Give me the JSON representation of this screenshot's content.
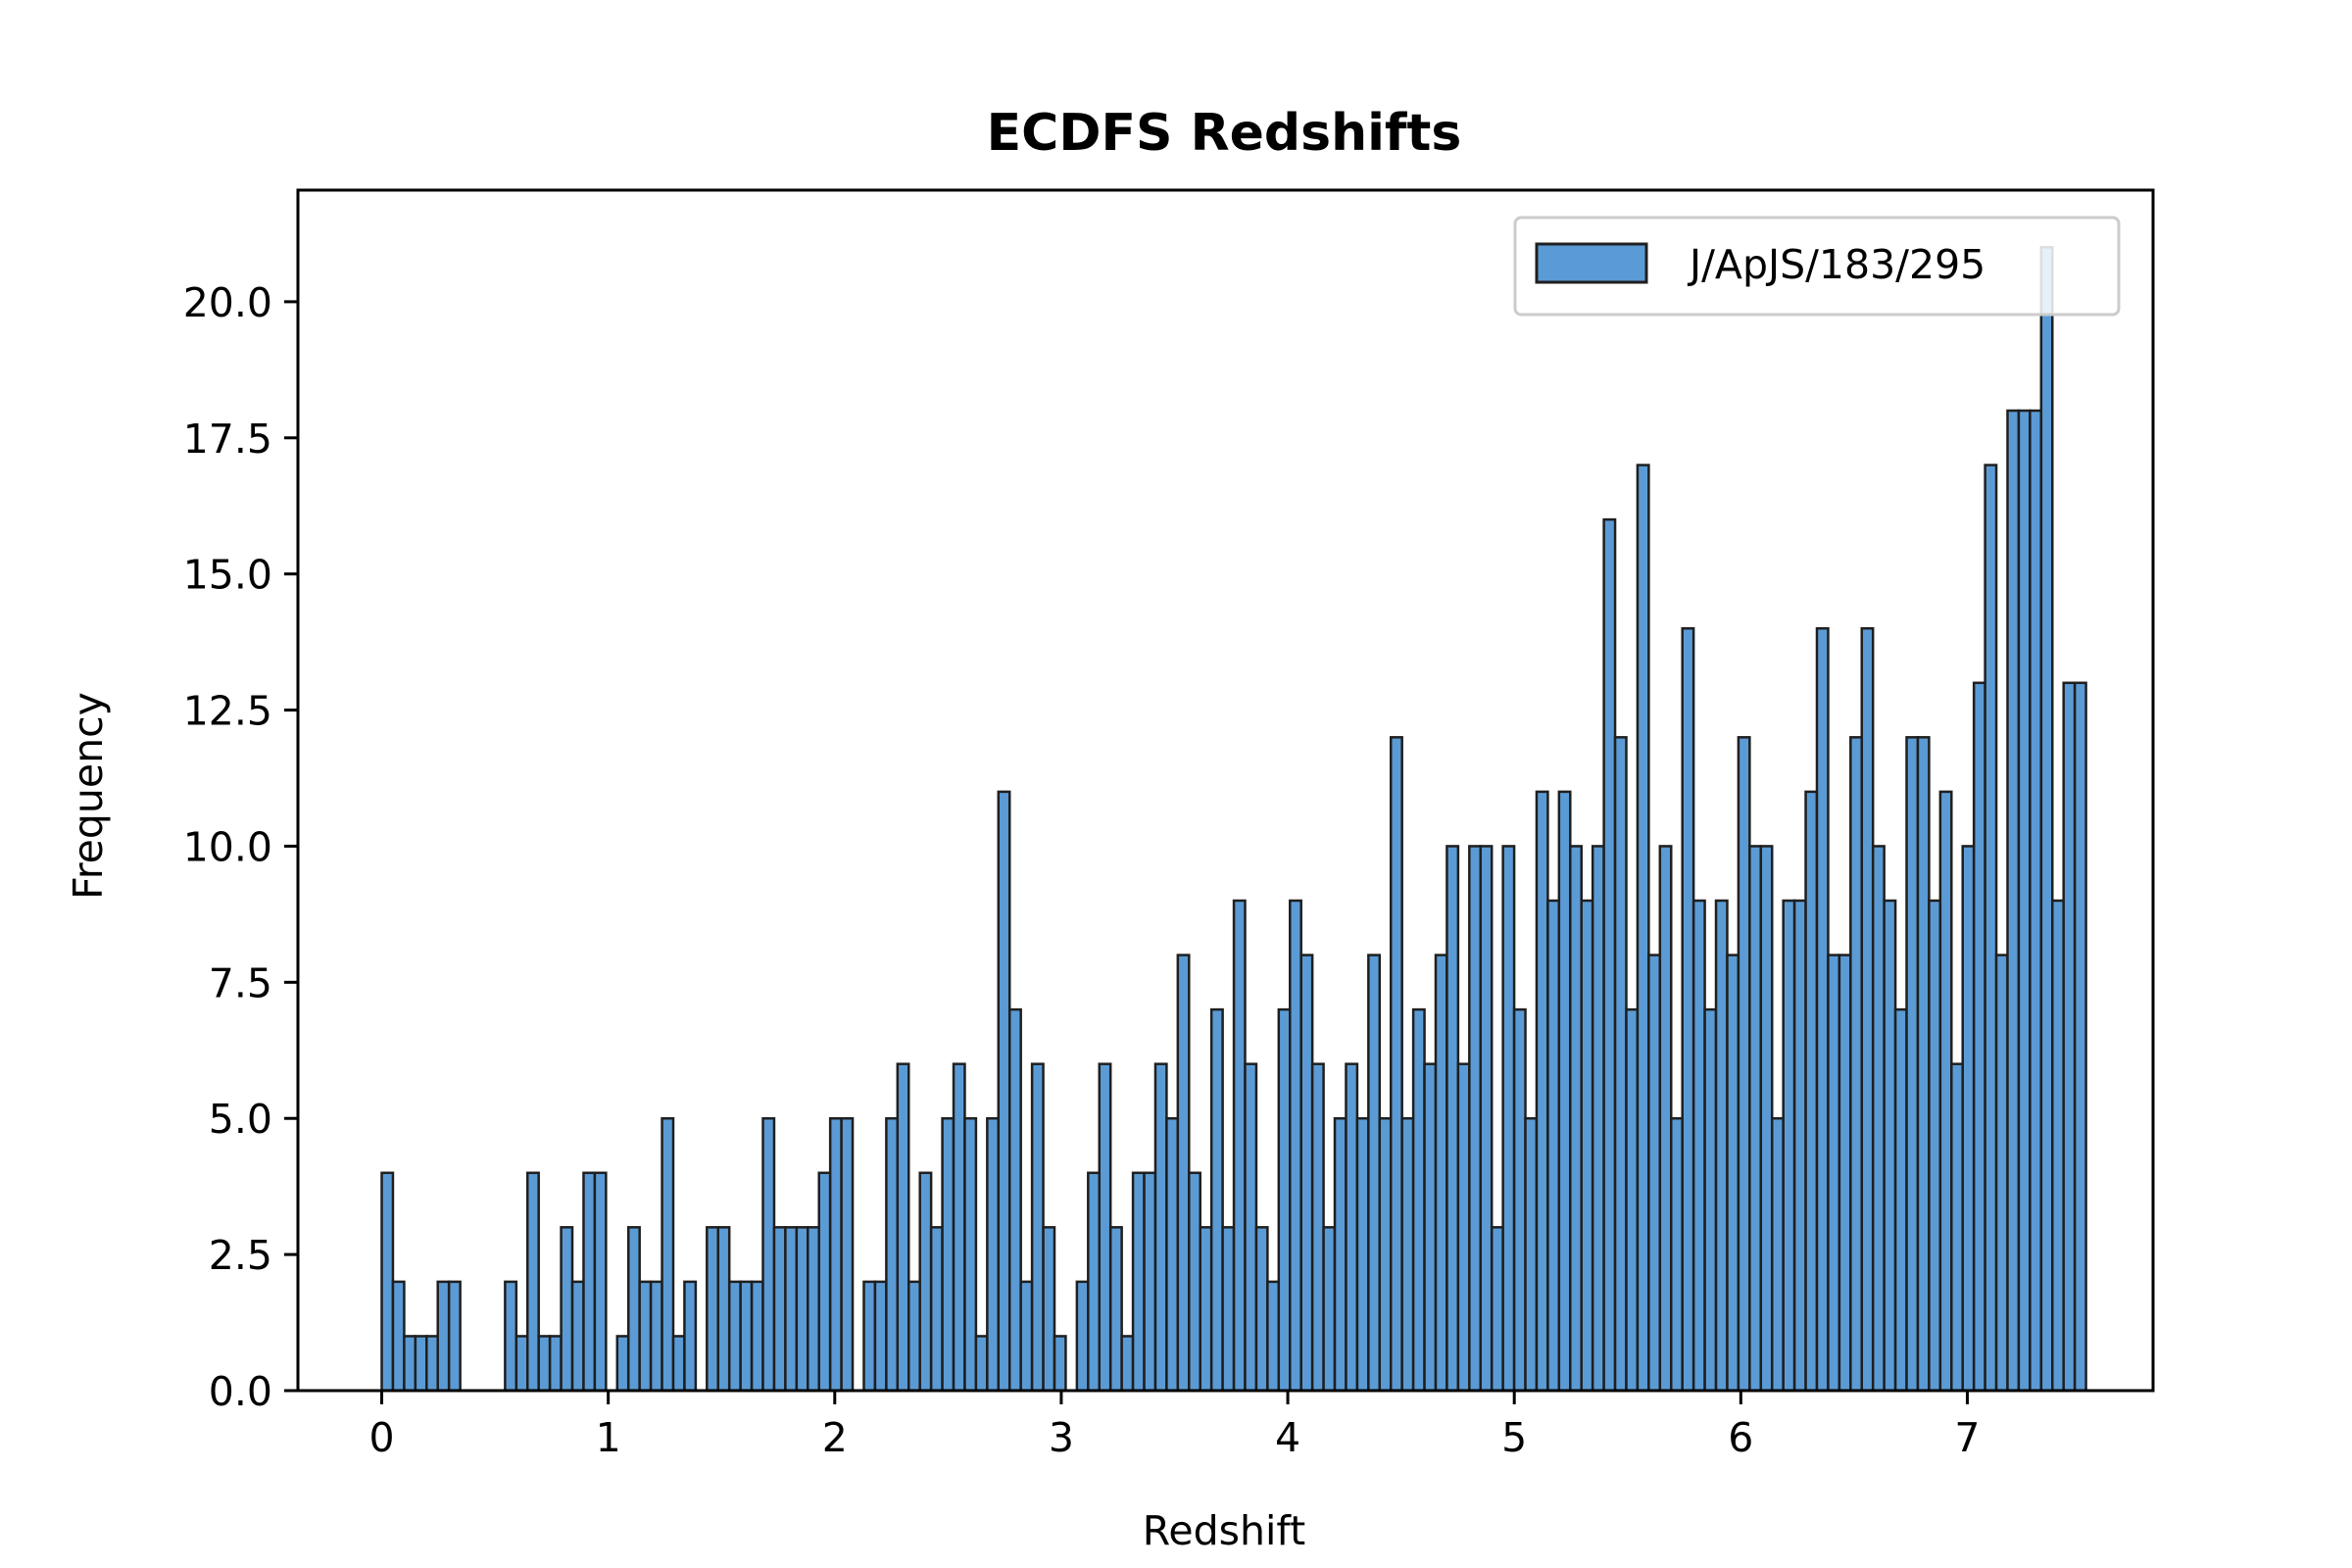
{
  "chart_data": {
    "type": "bar",
    "title": "ECDFS Redshifts",
    "xlabel": "Redshift",
    "ylabel": "Frequency",
    "xlim": [
      -0.37,
      7.82
    ],
    "ylim": [
      0,
      22.05
    ],
    "x_ticks": [
      0,
      1,
      2,
      3,
      4,
      5,
      6,
      7
    ],
    "x_tick_labels": [
      "0",
      "1",
      "2",
      "3",
      "4",
      "5",
      "6",
      "7"
    ],
    "y_ticks": [
      0,
      2.5,
      5,
      7.5,
      10,
      12.5,
      15,
      17.5,
      20
    ],
    "y_tick_labels": [
      "0.0",
      "2.5",
      "5.0",
      "7.5",
      "10.0",
      "12.5",
      "15.0",
      "17.5",
      "20.0"
    ],
    "grid": false,
    "legend_position": "top-right",
    "bin_start": 0,
    "bin_width": 0.0495,
    "series": [
      {
        "name": "J/ApJS/183/295",
        "color": "#5b9bd5",
        "edge_color": "#1f1f1f",
        "values": [
          4,
          2,
          1,
          1,
          1,
          2,
          2,
          0,
          0,
          0,
          0,
          2,
          1,
          4,
          1,
          1,
          3,
          2,
          4,
          4,
          0,
          1,
          3,
          2,
          2,
          5,
          1,
          2,
          0,
          3,
          3,
          2,
          2,
          2,
          5,
          3,
          3,
          3,
          3,
          4,
          5,
          5,
          0,
          2,
          2,
          5,
          6,
          2,
          4,
          3,
          5,
          6,
          5,
          1,
          5,
          11,
          7,
          2,
          6,
          3,
          1,
          0,
          2,
          4,
          6,
          3,
          1,
          4,
          4,
          6,
          5,
          8,
          4,
          3,
          7,
          3,
          9,
          6,
          3,
          2,
          7,
          9,
          8,
          6,
          3,
          5,
          6,
          5,
          8,
          5,
          12,
          5,
          7,
          6,
          8,
          10,
          6,
          10,
          10,
          3,
          10,
          7,
          5,
          11,
          9,
          11,
          10,
          9,
          10,
          16,
          12,
          7,
          17,
          8,
          10,
          5,
          14,
          9,
          7,
          9,
          8,
          12,
          10,
          10,
          5,
          9,
          9,
          11,
          14,
          8,
          8,
          12,
          14,
          10,
          9,
          7,
          12,
          12,
          9,
          11,
          6,
          10,
          13,
          17,
          8,
          18,
          18,
          18,
          21,
          9,
          13,
          13
        ]
      }
    ]
  }
}
